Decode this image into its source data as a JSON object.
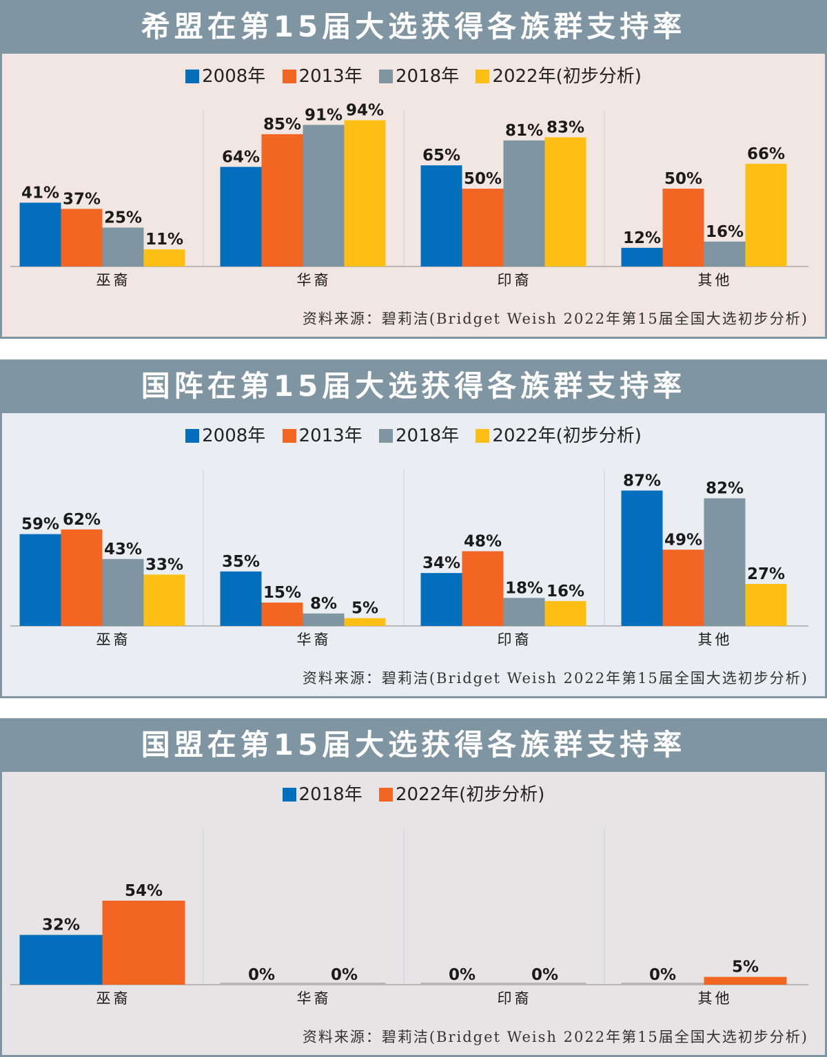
{
  "colors": {
    "header_bg": "#7f95a1",
    "s2008": "#0470bd",
    "s2013": "#f26522",
    "s2018": "#7f95a1",
    "s2022": "#fdbf14",
    "panel1_bg": "#f1e6e1",
    "panel2_bg": "#eaedf1",
    "panel3_bg": "#e6e4e4"
  },
  "source_text": "资料来源：碧莉洁(Bridget Weish 2022年第15届全国大选初步分析)",
  "chart_data": [
    {
      "type": "bar",
      "title": "希盟在第15届大选获得各族群支持率",
      "categories": [
        "巫裔",
        "华裔",
        "印裔",
        "其他"
      ],
      "series": [
        {
          "name": "2008年",
          "values": [
            41,
            64,
            65,
            12
          ],
          "labels": [
            "41%",
            "64%",
            "65%",
            "12%"
          ],
          "color": "#0470bd"
        },
        {
          "name": "2013年",
          "values": [
            37,
            85,
            50,
            50
          ],
          "labels": [
            "37%",
            "85%",
            "50%",
            "50%"
          ],
          "color": "#f26522"
        },
        {
          "name": "2018年",
          "values": [
            25,
            91,
            81,
            16
          ],
          "labels": [
            "25%",
            "91%",
            "81%",
            "16%"
          ],
          "color": "#7f95a1"
        },
        {
          "name": "2022年(初步分析)",
          "values": [
            11,
            94,
            83,
            66
          ],
          "labels": [
            "11%",
            "94%",
            "83%",
            "66%"
          ],
          "color": "#fdbf14"
        }
      ],
      "ylim": [
        0,
        100
      ],
      "legend": "top-center"
    },
    {
      "type": "bar",
      "title": "国阵在第15届大选获得各族群支持率",
      "categories": [
        "巫裔",
        "华裔",
        "印裔",
        "其他"
      ],
      "series": [
        {
          "name": "2008年",
          "values": [
            59,
            35,
            34,
            87
          ],
          "labels": [
            "59%",
            "35%",
            "34%",
            "87%"
          ],
          "color": "#0470bd"
        },
        {
          "name": "2013年",
          "values": [
            62,
            15,
            48,
            49
          ],
          "labels": [
            "62%",
            "15%",
            "48%",
            "49%"
          ],
          "color": "#f26522"
        },
        {
          "name": "2018年",
          "values": [
            43,
            8,
            18,
            82
          ],
          "labels": [
            "43%",
            "8%",
            "18%",
            "82%"
          ],
          "color": "#7f95a1"
        },
        {
          "name": "2022年(初步分析)",
          "values": [
            33,
            5,
            16,
            27
          ],
          "labels": [
            "33%",
            "5%",
            "16%",
            "27%"
          ],
          "color": "#fdbf14"
        }
      ],
      "ylim": [
        0,
        100
      ],
      "legend": "top-center"
    },
    {
      "type": "bar",
      "title": "国盟在第15届大选获得各族群支持率",
      "categories": [
        "巫裔",
        "华裔",
        "印裔",
        "其他"
      ],
      "series": [
        {
          "name": "2018年",
          "values": [
            32,
            0,
            0,
            0
          ],
          "labels": [
            "32%",
            "0%",
            "0%",
            "0%"
          ],
          "color": "#0470bd"
        },
        {
          "name": "2022年(初步分析)",
          "values": [
            54,
            0,
            0,
            5
          ],
          "labels": [
            "54%",
            "0%",
            "0%",
            "5%"
          ],
          "color": "#f26522"
        }
      ],
      "ylim": [
        0,
        100
      ],
      "legend": "top-center"
    }
  ]
}
